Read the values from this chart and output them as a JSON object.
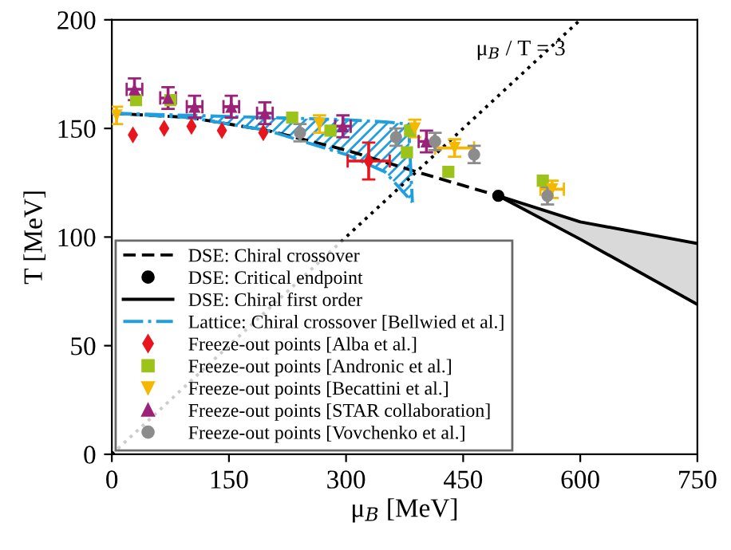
{
  "chart_data": {
    "type": "line",
    "xlabel": "μ$_{B}$ [MeV]",
    "ylabel": "T [MeV]",
    "xlim": [
      0,
      750
    ],
    "ylim": [
      0,
      200
    ],
    "xticks": [
      0,
      150,
      300,
      450,
      600,
      750
    ],
    "yticks": [
      0,
      50,
      100,
      150,
      200
    ],
    "grid": false,
    "legend": "bottom left",
    "annotations": [
      "μ$_{B}$ / T = 3"
    ],
    "series": [
      {
        "color": "#000000",
        "line_style": "dotted",
        "x": [
          0,
          600
        ],
        "values": [
          0,
          200
        ]
      },
      {
        "name": "DSE: Chiral crossover",
        "color": "#000000",
        "line_style": "dashed",
        "x": [
          0,
          100,
          200,
          300,
          400,
          495
        ],
        "values": [
          157,
          155,
          149,
          140,
          129,
          119
        ]
      },
      {
        "type": "scatter",
        "name": "DSE: Critical endpoint",
        "color": "#000000",
        "marker": "circle",
        "x": [
          495
        ],
        "values": [
          119
        ]
      },
      {
        "name": "DSE: Chiral first order",
        "color": "#000000",
        "line_style": "solid",
        "x": [
          495,
          600,
          750
        ],
        "values": [
          119,
          107,
          97
        ],
        "lower": [
          119,
          99,
          69
        ],
        "upper": [
          119,
          107,
          97
        ]
      },
      {
        "color": "#000000",
        "line_style": "solid",
        "x": [
          495,
          600,
          750
        ],
        "values": [
          119,
          99,
          69
        ]
      },
      {
        "name": "Lattice: Chiral crossover [Bellwied et al.]",
        "color": "#1f9ee0",
        "line_style": "dashdot",
        "x": [
          0,
          100,
          200,
          300,
          350,
          380,
          385
        ],
        "values": [
          157,
          156,
          155,
          154,
          153,
          152,
          116
        ],
        "lower": [
          157,
          155,
          149,
          138,
          130,
          118,
          116
        ],
        "upper": [
          157,
          156,
          155,
          154,
          153,
          152,
          116
        ]
      },
      {
        "color": "#1f9ee0",
        "line_style": "dashdot",
        "x": [
          0,
          100,
          200,
          300,
          350,
          380,
          385
        ],
        "values": [
          157,
          155,
          149,
          138,
          130,
          118,
          116
        ]
      },
      {
        "type": "scatter",
        "name": "Freeze-out points [Alba et al.]",
        "color": "#e8141e",
        "marker": "diamond",
        "x": [
          27,
          67,
          102,
          141,
          194,
          329
        ],
        "values": [
          147,
          150,
          151,
          149,
          148,
          135
        ],
        "errors": [
          null,
          null,
          null,
          null,
          null,
          8.5
        ],
        "xerrors": [
          null,
          null,
          null,
          null,
          null,
          27
        ]
      },
      {
        "type": "scatter",
        "name": "Freeze-out points [Andronic et al.]",
        "color": "#9cc31a",
        "marker": "square",
        "x": [
          31,
          75,
          231,
          280,
          382,
          378,
          431,
          552
        ],
        "values": [
          163,
          163,
          155,
          149,
          149,
          139,
          130,
          126
        ]
      },
      {
        "type": "scatter",
        "name": "Freeze-out points [Becattini et al.]",
        "color": "#f5b800",
        "marker": "triangle_down",
        "x": [
          6,
          266,
          388,
          439,
          564
        ],
        "values": [
          156,
          152,
          150,
          141,
          122
        ],
        "errors": [
          4,
          4,
          4,
          4,
          4
        ],
        "xerrors": [
          null,
          null,
          null,
          25,
          15
        ]
      },
      {
        "type": "scatter",
        "name": "Freeze-out points [STAR collaboration]",
        "color": "#9b2179",
        "marker": "triangle",
        "x": [
          29,
          72,
          106,
          153,
          196,
          296,
          403
        ],
        "values": [
          168,
          164,
          160,
          160,
          157,
          151,
          144
        ],
        "errors": [
          5,
          5,
          5,
          5,
          5,
          5,
          5
        ],
        "xerrors": [
          10,
          10,
          10,
          10,
          10,
          10,
          10
        ]
      },
      {
        "type": "scatter",
        "name": "Freeze-out points [Vovchenko et al.]",
        "color": "#8c8c8c",
        "marker": "circle",
        "x": [
          241,
          364,
          414,
          464,
          558
        ],
        "values": [
          148,
          146,
          144,
          138,
          119
        ],
        "errors": [
          4,
          4,
          4,
          4,
          4
        ]
      }
    ]
  }
}
